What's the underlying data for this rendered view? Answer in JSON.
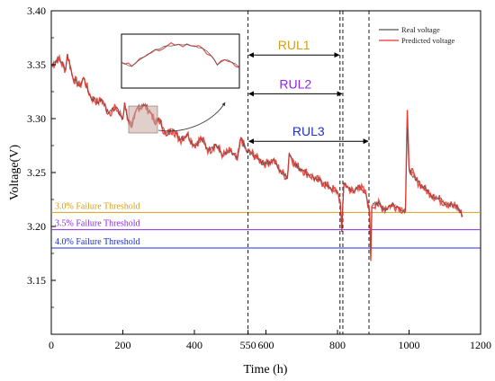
{
  "chart_data": {
    "type": "line",
    "xlabel": "Time (h)",
    "ylabel": "Voltage(V)",
    "xlim": [
      0,
      1200
    ],
    "ylim": [
      3.1,
      3.4
    ],
    "xticks": [
      "0",
      "200",
      "400",
      "550",
      "600",
      "800",
      "1000",
      "1200"
    ],
    "xtick_values": [
      0,
      200,
      400,
      550,
      600,
      800,
      1000,
      1200
    ],
    "yticks": [
      "3.15",
      "3.20",
      "3.25",
      "3.30",
      "3.35",
      "3.40"
    ],
    "ytick_values": [
      3.15,
      3.2,
      3.25,
      3.3,
      3.35,
      3.4
    ],
    "series": [
      {
        "name": "Real voltage",
        "color": "#555555",
        "points": [
          [
            0,
            3.348
          ],
          [
            20,
            3.356
          ],
          [
            40,
            3.345
          ],
          [
            45,
            3.36
          ],
          [
            60,
            3.338
          ],
          [
            80,
            3.33
          ],
          [
            90,
            3.338
          ],
          [
            110,
            3.32
          ],
          [
            130,
            3.315
          ],
          [
            140,
            3.318
          ],
          [
            160,
            3.305
          ],
          [
            180,
            3.31
          ],
          [
            200,
            3.3
          ],
          [
            205,
            3.315
          ],
          [
            215,
            3.298
          ],
          [
            225,
            3.292
          ],
          [
            240,
            3.31
          ],
          [
            260,
            3.312
          ],
          [
            280,
            3.305
          ],
          [
            290,
            3.295
          ],
          [
            300,
            3.3
          ],
          [
            320,
            3.285
          ],
          [
            340,
            3.29
          ],
          [
            360,
            3.28
          ],
          [
            380,
            3.286
          ],
          [
            400,
            3.275
          ],
          [
            420,
            3.282
          ],
          [
            440,
            3.27
          ],
          [
            460,
            3.276
          ],
          [
            480,
            3.266
          ],
          [
            500,
            3.27
          ],
          [
            520,
            3.262
          ],
          [
            530,
            3.282
          ],
          [
            545,
            3.27
          ],
          [
            560,
            3.268
          ],
          [
            580,
            3.262
          ],
          [
            600,
            3.258
          ],
          [
            620,
            3.262
          ],
          [
            640,
            3.252
          ],
          [
            660,
            3.245
          ],
          [
            665,
            3.268
          ],
          [
            680,
            3.258
          ],
          [
            700,
            3.253
          ],
          [
            720,
            3.248
          ],
          [
            740,
            3.244
          ],
          [
            760,
            3.24
          ],
          [
            780,
            3.236
          ],
          [
            800,
            3.232
          ],
          [
            808,
            3.222
          ],
          [
            812,
            3.198
          ],
          [
            818,
            3.24
          ],
          [
            830,
            3.236
          ],
          [
            845,
            3.232
          ],
          [
            860,
            3.238
          ],
          [
            880,
            3.23
          ],
          [
            890,
            3.212
          ],
          [
            893,
            3.172
          ],
          [
            896,
            3.218
          ],
          [
            910,
            3.222
          ],
          [
            930,
            3.216
          ],
          [
            950,
            3.22
          ],
          [
            970,
            3.218
          ],
          [
            990,
            3.214
          ],
          [
            995,
            3.292
          ],
          [
            1000,
            3.252
          ],
          [
            1020,
            3.243
          ],
          [
            1040,
            3.236
          ],
          [
            1060,
            3.23
          ],
          [
            1080,
            3.226
          ],
          [
            1100,
            3.222
          ],
          [
            1120,
            3.22
          ],
          [
            1140,
            3.216
          ],
          [
            1150,
            3.21
          ]
        ]
      },
      {
        "name": "Predicted voltage",
        "color": "#e8332a",
        "points": [
          [
            0,
            3.348
          ],
          [
            20,
            3.356
          ],
          [
            40,
            3.345
          ],
          [
            45,
            3.36
          ],
          [
            60,
            3.338
          ],
          [
            80,
            3.33
          ],
          [
            90,
            3.338
          ],
          [
            110,
            3.32
          ],
          [
            130,
            3.315
          ],
          [
            140,
            3.318
          ],
          [
            160,
            3.305
          ],
          [
            180,
            3.31
          ],
          [
            200,
            3.3
          ],
          [
            205,
            3.315
          ],
          [
            215,
            3.298
          ],
          [
            225,
            3.292
          ],
          [
            240,
            3.31
          ],
          [
            260,
            3.312
          ],
          [
            280,
            3.305
          ],
          [
            290,
            3.295
          ],
          [
            300,
            3.3
          ],
          [
            320,
            3.285
          ],
          [
            340,
            3.29
          ],
          [
            360,
            3.28
          ],
          [
            380,
            3.286
          ],
          [
            400,
            3.275
          ],
          [
            420,
            3.282
          ],
          [
            440,
            3.27
          ],
          [
            460,
            3.276
          ],
          [
            480,
            3.266
          ],
          [
            500,
            3.27
          ],
          [
            520,
            3.262
          ],
          [
            530,
            3.282
          ],
          [
            545,
            3.27
          ],
          [
            560,
            3.268
          ],
          [
            580,
            3.262
          ],
          [
            600,
            3.258
          ],
          [
            620,
            3.262
          ],
          [
            640,
            3.252
          ],
          [
            660,
            3.245
          ],
          [
            665,
            3.268
          ],
          [
            680,
            3.258
          ],
          [
            700,
            3.253
          ],
          [
            720,
            3.248
          ],
          [
            740,
            3.244
          ],
          [
            760,
            3.24
          ],
          [
            780,
            3.236
          ],
          [
            800,
            3.232
          ],
          [
            808,
            3.222
          ],
          [
            812,
            3.195
          ],
          [
            818,
            3.24
          ],
          [
            830,
            3.236
          ],
          [
            845,
            3.232
          ],
          [
            860,
            3.238
          ],
          [
            880,
            3.23
          ],
          [
            890,
            3.212
          ],
          [
            893,
            3.168
          ],
          [
            896,
            3.218
          ],
          [
            910,
            3.222
          ],
          [
            930,
            3.216
          ],
          [
            950,
            3.22
          ],
          [
            970,
            3.218
          ],
          [
            990,
            3.214
          ],
          [
            995,
            3.308
          ],
          [
            1000,
            3.255
          ],
          [
            1020,
            3.243
          ],
          [
            1040,
            3.236
          ],
          [
            1060,
            3.23
          ],
          [
            1080,
            3.226
          ],
          [
            1100,
            3.222
          ],
          [
            1120,
            3.22
          ],
          [
            1140,
            3.216
          ],
          [
            1150,
            3.21
          ]
        ]
      }
    ],
    "thresholds": [
      {
        "label": "3.0% Failure Threshold",
        "value": 3.213,
        "color": "#d4a017"
      },
      {
        "label": "3.5% Failure Threshold",
        "value": 3.197,
        "color": "#8a2be2"
      },
      {
        "label": "4.0% Failure Threshold",
        "value": 3.18,
        "color": "#1f2fd0"
      }
    ],
    "vlines": [
      550,
      807,
      815,
      888
    ],
    "rul": [
      {
        "label": "RUL1",
        "from": 550,
        "to": 807,
        "color": "#d4a017",
        "y": 3.359
      },
      {
        "label": "RUL2",
        "from": 550,
        "to": 815,
        "color": "#8a2be2",
        "y": 3.323
      },
      {
        "label": "RUL3",
        "from": 550,
        "to": 888,
        "color": "#1f2fd0",
        "y": 3.279
      }
    ],
    "legend_position": "top-right",
    "grid": false
  }
}
